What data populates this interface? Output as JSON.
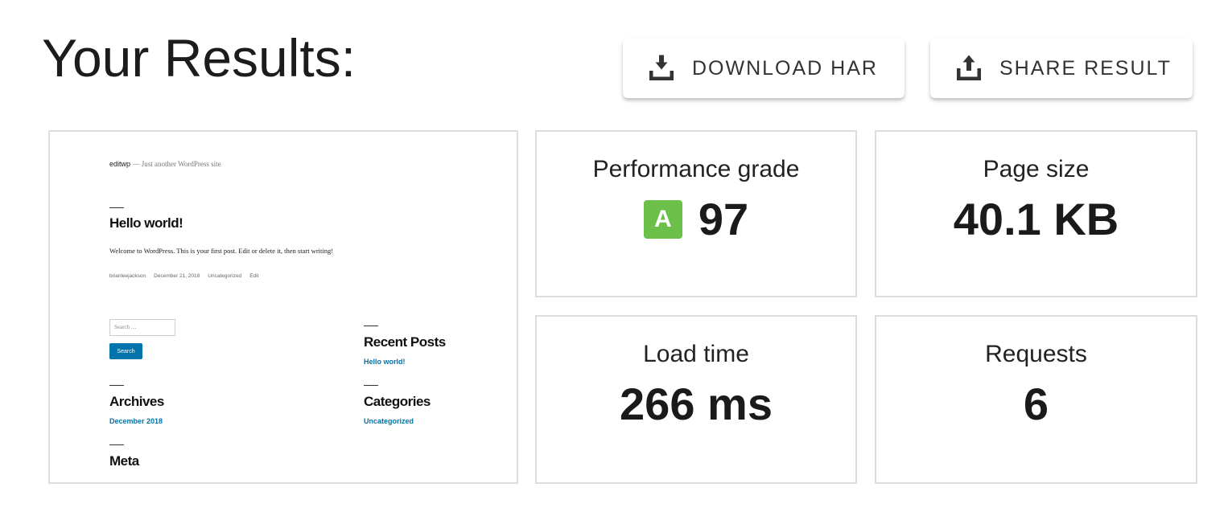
{
  "page_title": "Your Results:",
  "buttons": {
    "download": "DOWNLOAD HAR",
    "share": "SHARE RESULT"
  },
  "thumbnail": {
    "site_name": "editwp",
    "tagline": "— Just another WordPress site",
    "post_title": "Hello world!",
    "post_body": "Welcome to WordPress. This is your first post. Edit or delete it, then start writing!",
    "meta": {
      "author": "brianleejackson",
      "date": "December 21, 2018",
      "category": "Uncategorized",
      "edit": "Edit"
    },
    "search_placeholder": "Search …",
    "search_button": "Search",
    "recent_posts": {
      "title": "Recent Posts",
      "item": "Hello world!"
    },
    "archives": {
      "title": "Archives",
      "item": "December 2018"
    },
    "categories": {
      "title": "Categories",
      "item": "Uncategorized"
    },
    "meta_widget": {
      "title": "Meta"
    }
  },
  "stats": {
    "grade": {
      "label": "Performance grade",
      "letter": "A",
      "value": "97",
      "color": "#6cc04a"
    },
    "page_size": {
      "label": "Page size",
      "value": "40.1 KB"
    },
    "load_time": {
      "label": "Load time",
      "value": "266 ms"
    },
    "requests": {
      "label": "Requests",
      "value": "6"
    }
  }
}
